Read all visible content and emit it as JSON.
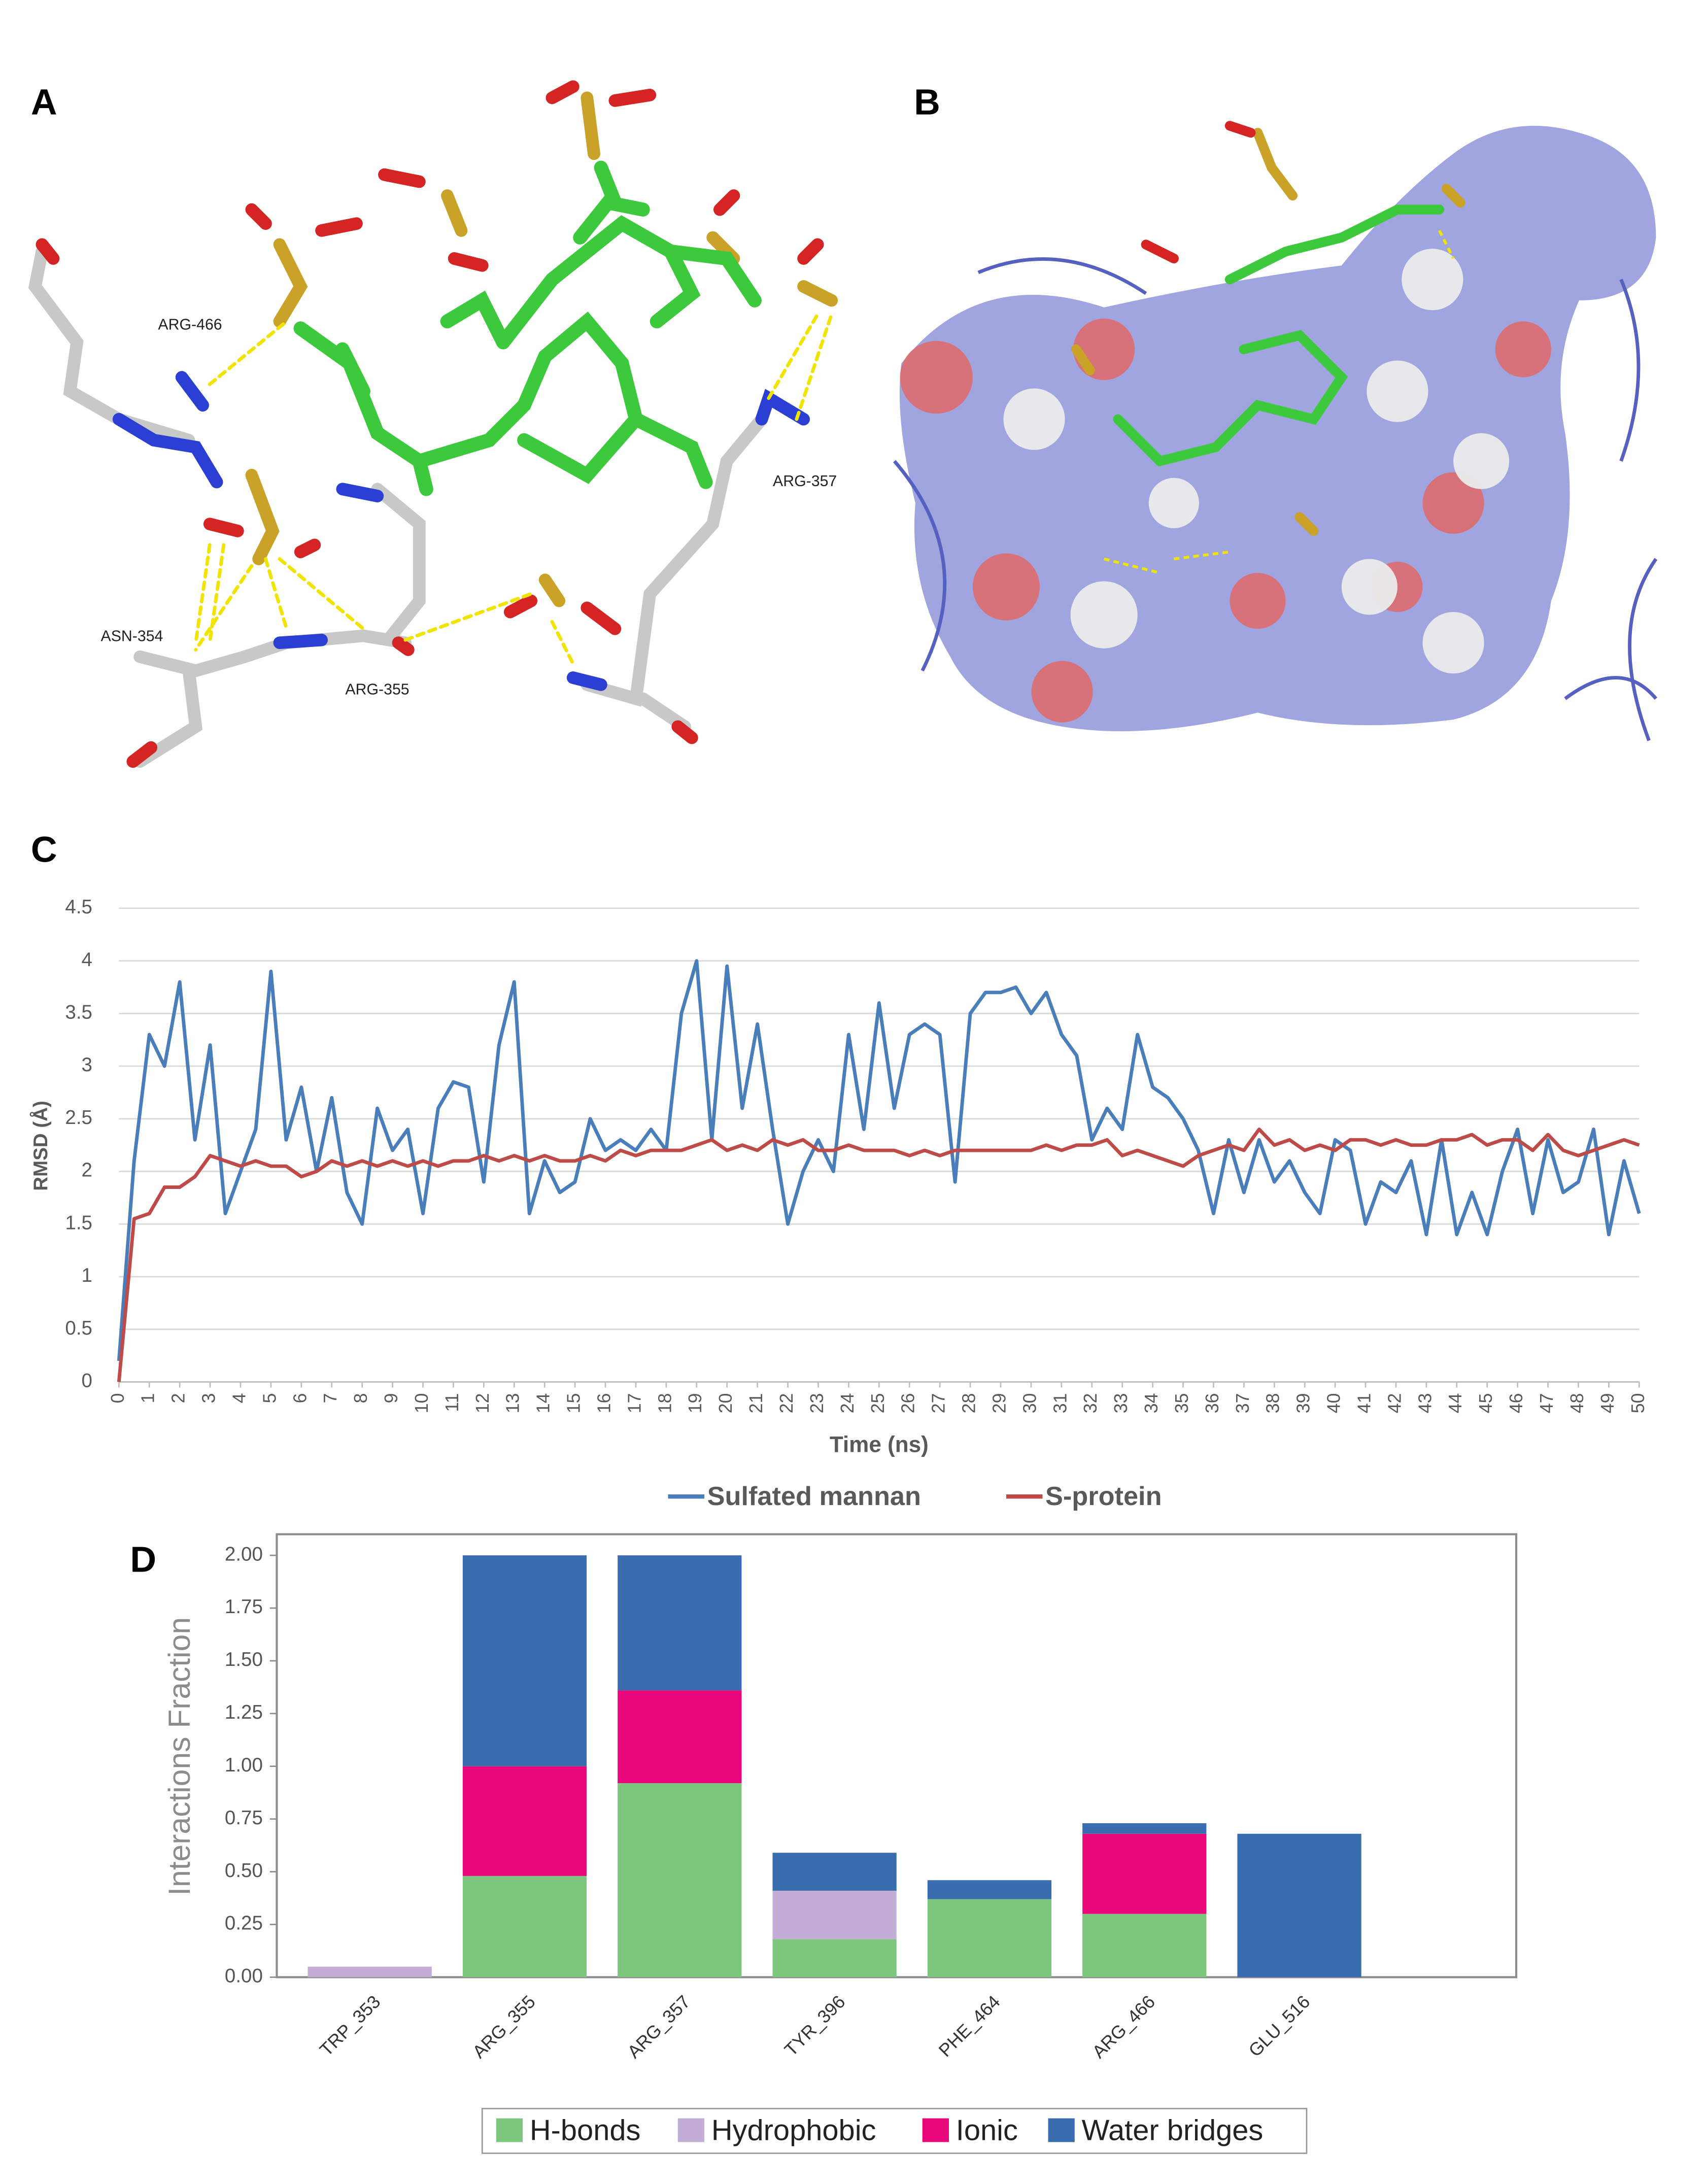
{
  "panel_labels": [
    "A",
    "B",
    "C",
    "D"
  ],
  "panel_a": {
    "residue_labels": [
      "ARG-466",
      "ARG-357",
      "ASN-354",
      "ARG-355"
    ]
  },
  "chart_data": [
    {
      "type": "line",
      "x_label": "Time (ns)",
      "y_label": "RMSD (Å)",
      "x": [
        0,
        0.5,
        1,
        1.5,
        2,
        2.5,
        3,
        3.5,
        4,
        4.5,
        5,
        5.5,
        6,
        6.5,
        7,
        7.5,
        8,
        8.5,
        9,
        9.5,
        10,
        10.5,
        11,
        11.5,
        12,
        12.5,
        13,
        13.5,
        14,
        14.5,
        15,
        15.5,
        16,
        16.5,
        17,
        17.5,
        18,
        18.5,
        19,
        19.5,
        20,
        20.5,
        21,
        21.5,
        22,
        22.5,
        23,
        23.5,
        24,
        24.5,
        25,
        25.5,
        26,
        26.5,
        27,
        27.5,
        28,
        28.5,
        29,
        29.5,
        30,
        30.5,
        31,
        31.5,
        32,
        32.5,
        33,
        33.5,
        34,
        34.5,
        35,
        35.5,
        36,
        36.5,
        37,
        37.5,
        38,
        38.5,
        39,
        39.5,
        40,
        40.5,
        41,
        41.5,
        42,
        42.5,
        43,
        43.5,
        44,
        44.5,
        45,
        45.5,
        46,
        46.5,
        47,
        47.5,
        48,
        48.5,
        49,
        49.5,
        50
      ],
      "series": [
        {
          "name": "Sulfated mannan",
          "color": "#4a7ebb",
          "values": [
            0.2,
            2.1,
            3.3,
            3.0,
            3.8,
            2.3,
            3.2,
            1.6,
            2.0,
            2.4,
            3.9,
            2.3,
            2.8,
            2.0,
            2.7,
            1.8,
            1.5,
            2.6,
            2.2,
            2.4,
            1.6,
            2.6,
            2.85,
            2.8,
            1.9,
            3.2,
            3.8,
            1.6,
            2.1,
            1.8,
            1.9,
            2.5,
            2.2,
            2.3,
            2.2,
            2.4,
            2.2,
            3.5,
            4.0,
            2.3,
            3.95,
            2.6,
            3.4,
            2.4,
            1.5,
            2.0,
            2.3,
            2.0,
            3.3,
            2.4,
            3.6,
            2.6,
            3.3,
            3.4,
            3.3,
            1.9,
            3.5,
            3.7,
            3.7,
            3.75,
            3.5,
            3.7,
            3.3,
            3.1,
            2.3,
            2.6,
            2.4,
            3.3,
            2.8,
            2.7,
            2.5,
            2.2,
            1.6,
            2.3,
            1.8,
            2.3,
            1.9,
            2.1,
            1.8,
            1.6,
            2.3,
            2.2,
            1.5,
            1.9,
            1.8,
            2.1,
            1.4,
            2.3,
            1.4,
            1.8,
            1.4,
            2.0,
            2.4,
            1.6,
            2.3,
            1.8,
            1.9,
            2.4,
            1.4,
            2.1,
            1.6
          ]
        },
        {
          "name": "S-protein",
          "color": "#be4b48",
          "values": [
            0,
            1.55,
            1.6,
            1.85,
            1.85,
            1.95,
            2.15,
            2.1,
            2.05,
            2.1,
            2.05,
            2.05,
            1.95,
            2.0,
            2.1,
            2.05,
            2.1,
            2.05,
            2.1,
            2.05,
            2.1,
            2.05,
            2.1,
            2.1,
            2.15,
            2.1,
            2.15,
            2.1,
            2.15,
            2.1,
            2.1,
            2.15,
            2.1,
            2.2,
            2.15,
            2.2,
            2.2,
            2.2,
            2.25,
            2.3,
            2.2,
            2.25,
            2.2,
            2.3,
            2.25,
            2.3,
            2.2,
            2.2,
            2.25,
            2.2,
            2.2,
            2.2,
            2.15,
            2.2,
            2.15,
            2.2,
            2.2,
            2.2,
            2.2,
            2.2,
            2.2,
            2.25,
            2.2,
            2.25,
            2.25,
            2.3,
            2.15,
            2.2,
            2.15,
            2.1,
            2.05,
            2.15,
            2.2,
            2.25,
            2.2,
            2.4,
            2.25,
            2.3,
            2.2,
            2.25,
            2.2,
            2.3,
            2.3,
            2.25,
            2.3,
            2.25,
            2.25,
            2.3,
            2.3,
            2.35,
            2.25,
            2.3,
            2.3,
            2.2,
            2.35,
            2.2,
            2.15,
            2.2,
            2.25,
            2.3,
            2.25
          ]
        }
      ],
      "xlim": [
        0,
        50
      ],
      "xticks": [
        0,
        1,
        2,
        3,
        4,
        5,
        6,
        7,
        8,
        9,
        10,
        11,
        12,
        13,
        14,
        15,
        16,
        17,
        18,
        19,
        20,
        21,
        22,
        23,
        24,
        25,
        26,
        27,
        28,
        29,
        30,
        31,
        32,
        33,
        34,
        35,
        36,
        37,
        38,
        39,
        40,
        41,
        42,
        43,
        44,
        45,
        46,
        47,
        48,
        49,
        50
      ],
      "ylim": [
        0,
        4.5
      ],
      "yticks": [
        0,
        0.5,
        1,
        1.5,
        2,
        2.5,
        3,
        3.5,
        4,
        4.5
      ],
      "grid": true,
      "legend": "bottom"
    },
    {
      "type": "stacked_bar",
      "y_label": "Interactions Fraction",
      "categories": [
        "TRP_353",
        "ARG_355",
        "ARG_357",
        "TYR_396",
        "PHE_464",
        "ARG_466",
        "GLU_516"
      ],
      "series": [
        {
          "name": "H-bonds",
          "color": "#7cc67e",
          "values": [
            0,
            0.48,
            0.92,
            0.18,
            0.37,
            0.3,
            0
          ]
        },
        {
          "name": "Hydrophobic",
          "color": "#c2aed6",
          "values": [
            0.05,
            0,
            0,
            0.23,
            0,
            0,
            0
          ]
        },
        {
          "name": "Ionic",
          "color": "#e8087c",
          "values": [
            0,
            0.52,
            0.44,
            0,
            0,
            0.38,
            0
          ]
        },
        {
          "name": "Water bridges",
          "color": "#3a6db0",
          "values": [
            0,
            1.0,
            0.64,
            0.18,
            0.09,
            0.05,
            0.68
          ]
        }
      ],
      "ylim": [
        0,
        2.1
      ],
      "yticks": [
        {
          "value": 0,
          "label": "0.00"
        },
        {
          "value": 0.25,
          "label": "0.25"
        },
        {
          "value": 0.5,
          "label": "0.50"
        },
        {
          "value": 0.75,
          "label": "0.75"
        },
        {
          "value": 1,
          "label": "1.00"
        },
        {
          "value": 1.25,
          "label": "1.25"
        },
        {
          "value": 1.5,
          "label": "1.50"
        },
        {
          "value": 1.75,
          "label": "1.75"
        },
        {
          "value": 2,
          "label": "2.00"
        }
      ],
      "grid": false,
      "legend": "bottom"
    }
  ]
}
